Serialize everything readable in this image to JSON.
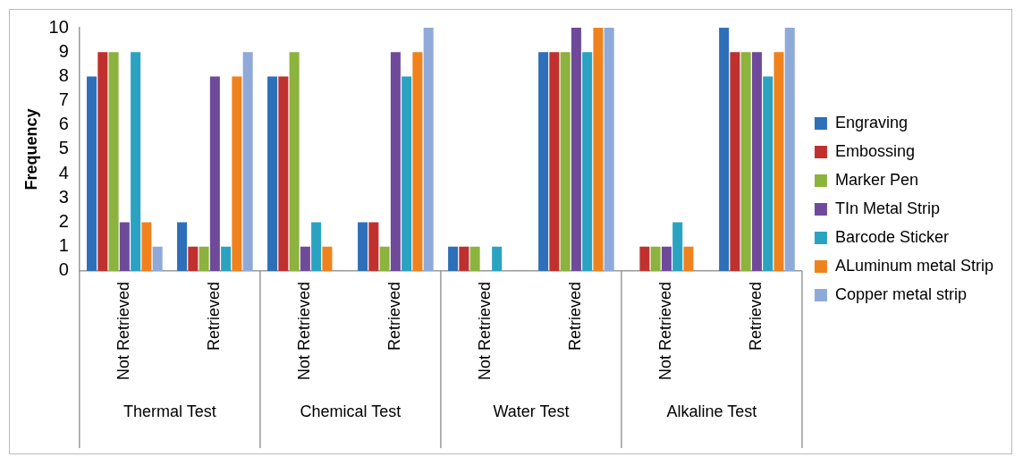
{
  "chart_data": {
    "type": "bar",
    "ylabel": "Frequency",
    "categories": [
      "Not Retrieved",
      "Retrieved",
      "Not Retrieved",
      "Retrieved",
      "Not Retrieved",
      "Retrieved",
      "Not Retrieved",
      "Retrieved"
    ],
    "annotations": [
      "Thermal Test",
      "Chemical Test",
      "Water Test",
      "Alkaline Test"
    ],
    "series": [
      {
        "name": "Engraving",
        "color": "#2e6fba",
        "values": [
          8,
          2,
          8,
          2,
          1,
          9,
          0,
          10
        ]
      },
      {
        "name": "Embossing",
        "color": "#c0302f",
        "values": [
          9,
          1,
          8,
          2,
          1,
          9,
          1,
          9
        ]
      },
      {
        "name": "Marker Pen",
        "color": "#8cb33e",
        "values": [
          9,
          1,
          9,
          1,
          1,
          9,
          1,
          9
        ]
      },
      {
        "name": "TIn Metal Strip",
        "color": "#6f4a9a",
        "values": [
          2,
          8,
          1,
          9,
          0,
          10,
          1,
          9
        ]
      },
      {
        "name": "Barcode Sticker",
        "color": "#2aa3c2",
        "values": [
          9,
          1,
          2,
          8,
          1,
          9,
          2,
          8
        ]
      },
      {
        "name": "ALuminum metal Strip",
        "color": "#f0821e",
        "values": [
          2,
          8,
          1,
          9,
          0,
          10,
          1,
          9
        ]
      },
      {
        "name": "Copper metal strip",
        "color": "#8fa9d9",
        "values": [
          1,
          9,
          0,
          10,
          0,
          10,
          0,
          10
        ]
      }
    ],
    "ylim": [
      0,
      10
    ],
    "yticks": [
      0,
      1,
      2,
      3,
      4,
      5,
      6,
      7,
      8,
      9,
      10
    ],
    "grid": false,
    "legend": "right"
  }
}
